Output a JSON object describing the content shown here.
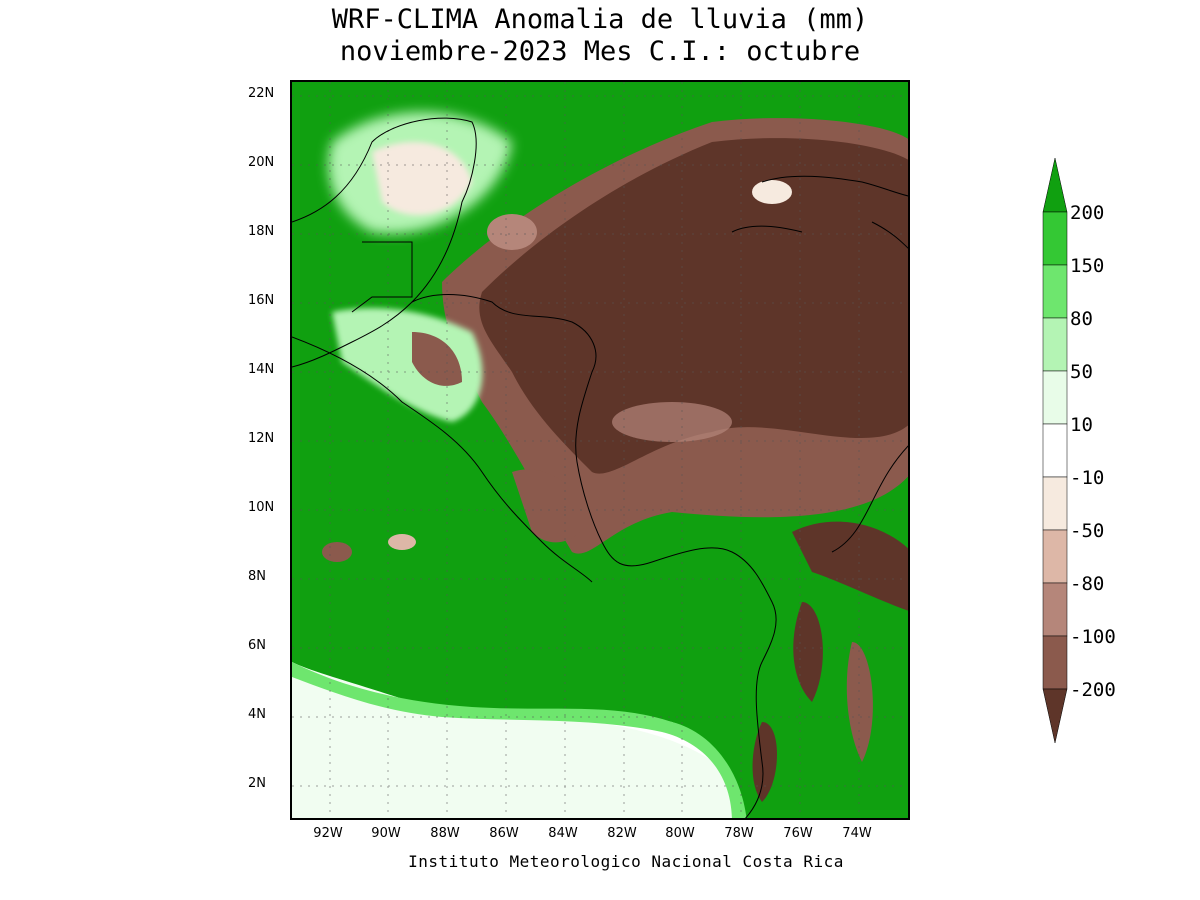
{
  "title": {
    "line1": "WRF-CLIMA Anomalia de lluvia (mm)",
    "line2": "noviembre-2023 Mes C.I.: octubre"
  },
  "credit": "Instituto Meteorologico Nacional Costa Rica",
  "axes": {
    "lat_labels": [
      "22N",
      "20N",
      "18N",
      "16N",
      "14N",
      "12N",
      "10N",
      "8N",
      "6N",
      "4N",
      "2N"
    ],
    "lon_labels": [
      "92W",
      "90W",
      "88W",
      "86W",
      "84W",
      "82W",
      "80W",
      "78W",
      "76W",
      "74W"
    ]
  },
  "legend": {
    "labels": [
      "200",
      "150",
      "80",
      "50",
      "10",
      "-10",
      "-50",
      "-80",
      "-100",
      "-200"
    ],
    "colors": [
      "#10a010",
      "#34c834",
      "#6ee66e",
      "#b4f4b4",
      "#e8fce8",
      "#ffffff",
      "#f6eadf",
      "#ddb7a7",
      "#b5867a",
      "#8b5a4d",
      "#5e3529"
    ]
  },
  "colors": {
    "ocean_wet": "#10a010",
    "dry_core": "#5e3529",
    "dry_edge": "#8b5a4d",
    "light_green": "#6ee66e",
    "pale_green": "#b4f4b4",
    "neutral": "#ffffff",
    "coast_line": "#000000"
  }
}
